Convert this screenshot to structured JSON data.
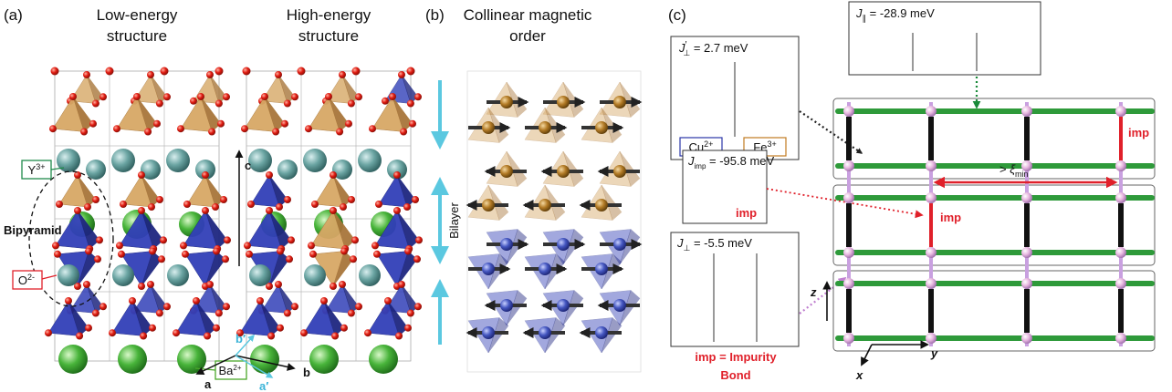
{
  "panel_a": {
    "label": "(a)",
    "low_title": [
      "Low-energy",
      "structure"
    ],
    "high_title": [
      "High-energy",
      "structure"
    ],
    "ions": {
      "y": {
        "base": "Y",
        "sup": "3+"
      },
      "o": {
        "base": "O",
        "sup": "2-"
      },
      "ba": {
        "base": "Ba",
        "sup": "2+"
      }
    },
    "bipyramid": "Bipyramid",
    "axes": {
      "c": "c",
      "a": "a",
      "b": "b",
      "a_prime": "a′",
      "b_prime": "b′"
    }
  },
  "panel_b": {
    "label": "(b)",
    "title": [
      "Collinear magnetic",
      "order"
    ],
    "bilayer": "Bilayer"
  },
  "panel_c": {
    "label": "(c)",
    "j_perp_prime": {
      "symbol": "J",
      "prime": "′",
      "sub": "⊥",
      "value": " = 2.7 meV"
    },
    "j_par": {
      "symbol": "J",
      "sub": "∥",
      "value": " = -28.9 meV"
    },
    "j_imp": {
      "symbol": "J",
      "sub": "imp",
      "value": " = -95.8 meV"
    },
    "j_perp": {
      "symbol": "J",
      "sub": "⊥",
      "value": " = -5.5 meV"
    },
    "ions": {
      "cu": {
        "base": "Cu",
        "sup": "2+"
      },
      "fe": {
        "base": "Fe",
        "sup": "3+"
      }
    },
    "imp_box_label": "imp",
    "lattice_imp_labels": [
      "imp",
      "imp"
    ],
    "legend": [
      "imp = Impurity",
      "Bond"
    ],
    "xi": {
      "prefix": "> ",
      "symbol": "ξ",
      "sub": "min"
    },
    "axes": {
      "z": "z",
      "y": "y",
      "x": "x"
    }
  }
}
